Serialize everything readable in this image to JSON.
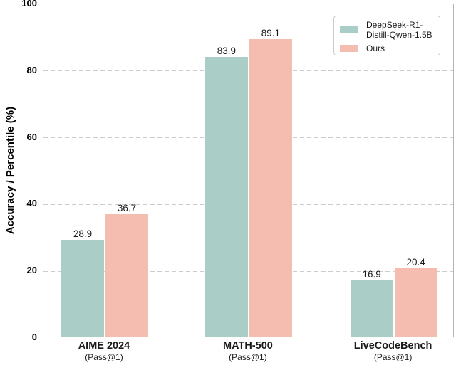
{
  "chart_data": {
    "type": "bar",
    "title": "",
    "xlabel": "",
    "ylabel": "Accuracy / Percentile (%)",
    "ylim": [
      0,
      100
    ],
    "yticks": [
      0,
      20,
      40,
      60,
      80,
      100
    ],
    "grid": "horizontal-dashed",
    "legend_position": "upper-right",
    "categories": [
      "AIME 2024",
      "MATH-500",
      "LiveCodeBench"
    ],
    "category_sublabels": [
      "(Pass@1)",
      "(Pass@1)",
      "(Pass@1)"
    ],
    "series": [
      {
        "name": "DeepSeek-R1-Distill-Qwen-1.5B",
        "legend_lines": [
          "DeepSeek-R1-",
          "Distill-Qwen-1.5B"
        ],
        "color": "#aacdc8",
        "values": [
          28.9,
          83.9,
          16.9
        ]
      },
      {
        "name": "Ours",
        "legend_lines": [
          "Ours"
        ],
        "color": "#f5bcb0",
        "values": [
          36.7,
          89.1,
          20.4
        ]
      }
    ]
  },
  "style": {
    "background": "#ffffff",
    "grid_color": "#cccccc",
    "axis_border_color": "#b5b5b5",
    "text_color": "#1a1a1a",
    "legend_border_color": "#cccccc"
  }
}
